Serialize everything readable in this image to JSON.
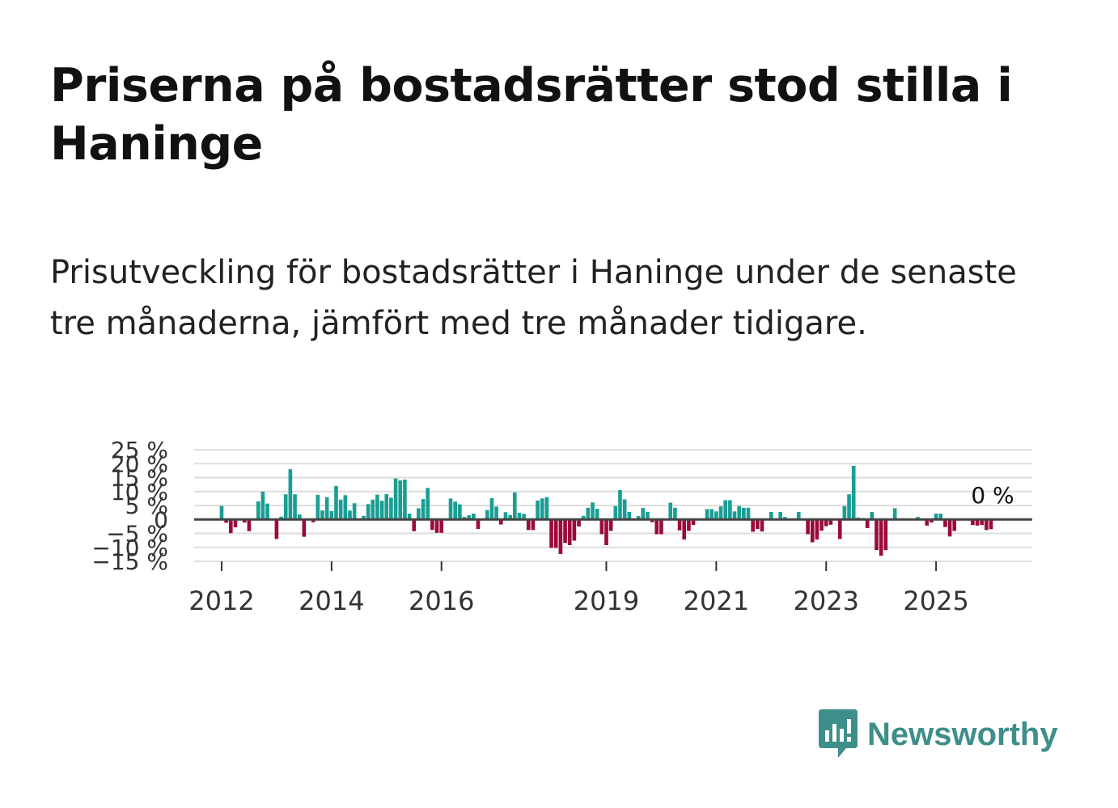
{
  "title": "Priserna på bostadsrätter stod stilla i Haninge",
  "subtitle": "Prisutveckling för bostadsrätter i Haninge under de senaste tre månaderna, jämfört med tre månader tidigare.",
  "brand": {
    "name": "Newsworthy",
    "icon": "newsworthy-logo-icon",
    "color": "#3e8e8a"
  },
  "colors": {
    "positive": "#1a9e93",
    "negative": "#9b0a3c",
    "grid": "#dddddd",
    "zero_line": "#444444"
  },
  "chart_data": {
    "type": "bar",
    "title": "",
    "xlabel": "",
    "ylabel": "",
    "ylim": [
      -15,
      25
    ],
    "yticks": [
      25,
      20,
      15,
      10,
      5,
      0,
      -5,
      -10,
      -15
    ],
    "ytick_labels": [
      "25 %",
      "20 %",
      "15 %",
      "10 %",
      "5 %",
      "0",
      "−5 %",
      "−10 %",
      "−15 %"
    ],
    "xticks": [
      2012,
      2014,
      2016,
      2019,
      2021,
      2023,
      2025
    ],
    "xtick_labels": [
      "2012",
      "2014",
      "2016",
      "2019",
      "2021",
      "2023",
      "2025"
    ],
    "x_start": 2011.5,
    "x_end": 2026.75,
    "annotation": "0 %",
    "series": [
      {
        "name": "Prisutveckling",
        "period": "monthly, from Jan 2012",
        "values": [
          4.8,
          -1.2,
          -4.9,
          -2.8,
          0.3,
          -1.1,
          -4.2,
          0.3,
          6.5,
          10,
          5.7,
          0.2,
          -7,
          1,
          9,
          18,
          9,
          1.8,
          -6.2,
          0.2,
          -1,
          8.8,
          3.2,
          8,
          3,
          12,
          7.1,
          8.7,
          3.2,
          5.8,
          0.3,
          1.3,
          5.5,
          7.1,
          8.9,
          6.7,
          9.1,
          7.8,
          14.7,
          14,
          14.3,
          2.1,
          -4.2,
          4,
          7.3,
          11.3,
          -3.7,
          -4.8,
          -4.8,
          0.1,
          7.5,
          6.4,
          5.4,
          0.9,
          1.5,
          2.1,
          -3.4,
          0.2,
          3.4,
          7.6,
          4.6,
          -1.8,
          2.6,
          1.6,
          9.7,
          2.4,
          2,
          -3.8,
          -3.8,
          6.8,
          7.5,
          8,
          -10.2,
          -10.2,
          -12.4,
          -8.4,
          -9.2,
          -7.6,
          -2.5,
          1.3,
          4.2,
          6.1,
          3.8,
          -5.3,
          -9.2,
          -4.1,
          4.8,
          10.5,
          7.2,
          2.7,
          0.2,
          1.2,
          4.1,
          2.7,
          -1,
          -5.3,
          -5.3,
          0.2,
          6,
          4.2,
          -3.9,
          -7.2,
          -4.1,
          -2,
          0.3,
          0.2,
          3.7,
          3.7,
          2.9,
          4.7,
          6.9,
          6.9,
          2.9,
          4.8,
          4.2,
          4.2,
          -4.4,
          -3.4,
          -4.3,
          0.2,
          2.7,
          0.2,
          2.7,
          0.9,
          0.3,
          0.4,
          2.7,
          0.2,
          -5.3,
          -8.2,
          -7.2,
          -4,
          -2.4,
          -1.9,
          -0.3,
          -7,
          4.8,
          9,
          19.2,
          0.7,
          0.5,
          -3.1,
          2.7,
          -11,
          -13,
          -11,
          0.3,
          4,
          0.3,
          0.2,
          0.2,
          0.3,
          0.9,
          0.3,
          -2.2,
          -1.1,
          2.1,
          2.1,
          -2.7,
          -6.1,
          -4.1,
          -0.4,
          0,
          -0.4,
          -2,
          -2.2,
          -2,
          -3.8,
          -3.5,
          0
        ]
      }
    ]
  }
}
